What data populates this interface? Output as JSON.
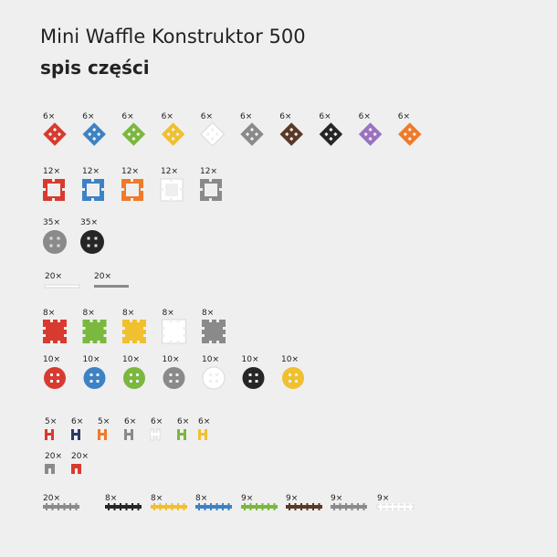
{
  "header": {
    "title": "Mini Waffle Konstruktor 500",
    "subtitle": "spis części"
  },
  "groups": [
    {
      "items": [
        {
          "count": "6×",
          "color": "#d93a2f"
        },
        {
          "count": "6×",
          "color": "#3d82c4"
        },
        {
          "count": "6×",
          "color": "#7ab83e"
        },
        {
          "count": "6×",
          "color": "#f0c02e"
        },
        {
          "count": "6×",
          "color": "#ffffff"
        },
        {
          "count": "6×",
          "color": "#8a8a8a"
        },
        {
          "count": "6×",
          "color": "#5a3a26"
        },
        {
          "count": "6×",
          "color": "#262626"
        },
        {
          "count": "6×",
          "color": "#9b72c2"
        },
        {
          "count": "6×",
          "color": "#f07a2a"
        }
      ]
    },
    {
      "items": [
        {
          "count": "12×",
          "color": "#d93a2f"
        },
        {
          "count": "12×",
          "color": "#3d82c4"
        },
        {
          "count": "12×",
          "color": "#f07a2a"
        },
        {
          "count": "12×",
          "color": "#ffffff"
        },
        {
          "count": "12×",
          "color": "#8a8a8a"
        }
      ]
    },
    {
      "items": [
        {
          "count": "35×",
          "color": "#8a8a8a"
        },
        {
          "count": "35×",
          "color": "#262626"
        }
      ]
    },
    {
      "items": [
        {
          "count": "20×",
          "color": "#ffffff"
        },
        {
          "count": "20×",
          "color": "#8a8a8a"
        }
      ]
    },
    {
      "items": [
        {
          "count": "8×",
          "color": "#d93a2f"
        },
        {
          "count": "8×",
          "color": "#7ab83e"
        },
        {
          "count": "8×",
          "color": "#f0c02e"
        },
        {
          "count": "8×",
          "color": "#ffffff"
        },
        {
          "count": "8×",
          "color": "#8a8a8a"
        }
      ]
    },
    {
      "items": [
        {
          "count": "10×",
          "color": "#d93a2f"
        },
        {
          "count": "10×",
          "color": "#3d82c4"
        },
        {
          "count": "10×",
          "color": "#7ab83e"
        },
        {
          "count": "10×",
          "color": "#8a8a8a"
        },
        {
          "count": "10×",
          "color": "#ffffff"
        },
        {
          "count": "10×",
          "color": "#262626"
        },
        {
          "count": "10×",
          "color": "#f0c02e"
        }
      ]
    },
    {
      "items": [
        {
          "count": "5×",
          "color": "#d93a2f"
        },
        {
          "count": "6×",
          "color": "#2b3a66"
        },
        {
          "count": "5×",
          "color": "#f07a2a"
        },
        {
          "count": "6×",
          "color": "#8a8a8a"
        },
        {
          "count": "6×",
          "color": "#ffffff"
        },
        {
          "count": "6×",
          "color": "#7ab83e"
        },
        {
          "count": "6×",
          "color": "#f0c02e"
        }
      ]
    },
    {
      "items": [
        {
          "count": "20×",
          "color": "#8a8a8a"
        },
        {
          "count": "20×",
          "color": "#d93a2f"
        }
      ]
    },
    {
      "items": [
        {
          "count": "20×",
          "color": "#8a8a8a"
        },
        {
          "count": "8×",
          "color": "#262626"
        },
        {
          "count": "8×",
          "color": "#f0c02e"
        },
        {
          "count": "8×",
          "color": "#3d82c4"
        },
        {
          "count": "9×",
          "color": "#7ab83e"
        },
        {
          "count": "9×",
          "color": "#5a3a26"
        },
        {
          "count": "9×",
          "color": "#8a8a8a"
        },
        {
          "count": "9×",
          "color": "#ffffff"
        }
      ]
    }
  ]
}
